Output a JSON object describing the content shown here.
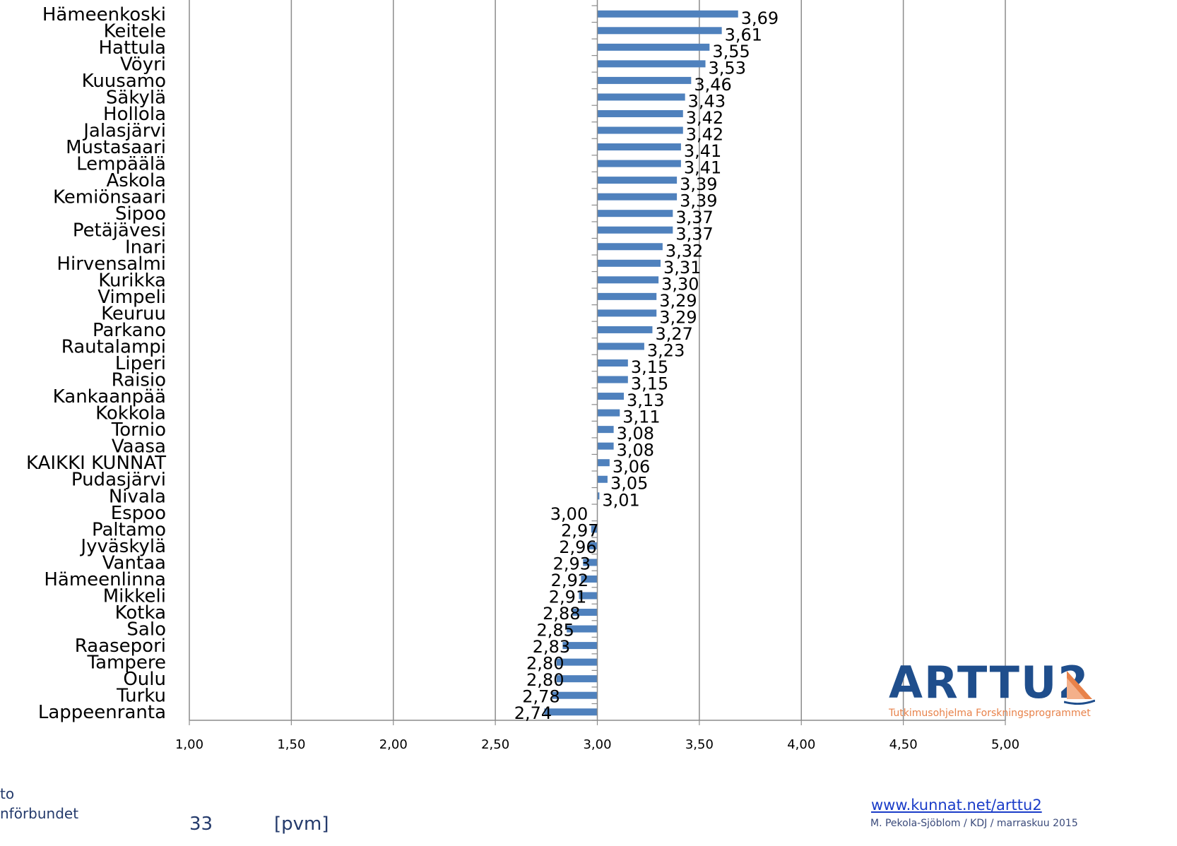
{
  "chart_data": {
    "type": "bar",
    "orientation": "horizontal",
    "title": "",
    "xlabel": "",
    "ylabel": "",
    "xlim": [
      1.0,
      5.0
    ],
    "baseline": 3.0,
    "x_ticks": [
      "1,00",
      "1,50",
      "2,00",
      "2,50",
      "3,00",
      "3,50",
      "4,00",
      "4,50",
      "5,00"
    ],
    "x_tick_values": [
      1.0,
      1.5,
      2.0,
      2.5,
      3.0,
      3.5,
      4.0,
      4.5,
      5.0
    ],
    "grid": "vertical",
    "bar_color": "#4f81bd",
    "categories": [
      "Hämeenkoski",
      "Keitele",
      "Hattula",
      "Vöyri",
      "Kuusamo",
      "Säkylä",
      "Hollola",
      "Jalasjärvi",
      "Mustasaari",
      "Lempäälä",
      "Askola",
      "Kemiönsaari",
      "Sipoo",
      "Petäjävesi",
      "Inari",
      "Hirvensalmi",
      "Kurikka",
      "Vimpeli",
      "Keuruu",
      "Parkano",
      "Rautalampi",
      "Liperi",
      "Raisio",
      "Kankaanpää",
      "Kokkola",
      "Tornio",
      "Vaasa",
      "KAIKKI KUNNAT",
      "Pudasjärvi",
      "Nivala",
      "Espoo",
      "Paltamo",
      "Jyväskylä",
      "Vantaa",
      "Hämeenlinna",
      "Mikkeli",
      "Kotka",
      "Salo",
      "Raasepori",
      "Tampere",
      "Oulu",
      "Turku",
      "Lappeenranta"
    ],
    "values": [
      3.69,
      3.61,
      3.55,
      3.53,
      3.46,
      3.43,
      3.42,
      3.42,
      3.41,
      3.41,
      3.39,
      3.39,
      3.37,
      3.37,
      3.32,
      3.31,
      3.3,
      3.29,
      3.29,
      3.27,
      3.23,
      3.15,
      3.15,
      3.13,
      3.11,
      3.08,
      3.08,
      3.06,
      3.05,
      3.01,
      3.0,
      2.97,
      2.96,
      2.93,
      2.92,
      2.91,
      2.88,
      2.85,
      2.83,
      2.8,
      2.8,
      2.78,
      2.74
    ],
    "value_labels": [
      "3,69",
      "3,61",
      "3,55",
      "3,53",
      "3,46",
      "3,43",
      "3,42",
      "3,42",
      "3,41",
      "3,41",
      "3,39",
      "3,39",
      "3,37",
      "3,37",
      "3,32",
      "3,31",
      "3,30",
      "3,29",
      "3,29",
      "3,27",
      "3,23",
      "3,15",
      "3,15",
      "3,13",
      "3,11",
      "3,08",
      "3,08",
      "3,06",
      "3,05",
      "3,01",
      "3,00",
      "2,97",
      "2,96",
      "2,93",
      "2,92",
      "2,91",
      "2,88",
      "2,85",
      "2,83",
      "2,80",
      "2,80",
      "2,78",
      "2,74"
    ]
  },
  "footer": {
    "page_number": "33",
    "date_placeholder": "[pvm]",
    "org_line1": "to",
    "org_line2": "nförbundet",
    "url": "www.kunnat.net/arttu2",
    "credit": "M. Pekola-Sjöblom / KDJ / marraskuu 2015"
  },
  "logo": {
    "name": "ARTTU2",
    "subtitle": "Tutkimusohjelma  Forskningsprogrammet",
    "brand_color": "#1f4e8c",
    "accent_color": "#e8824a"
  }
}
